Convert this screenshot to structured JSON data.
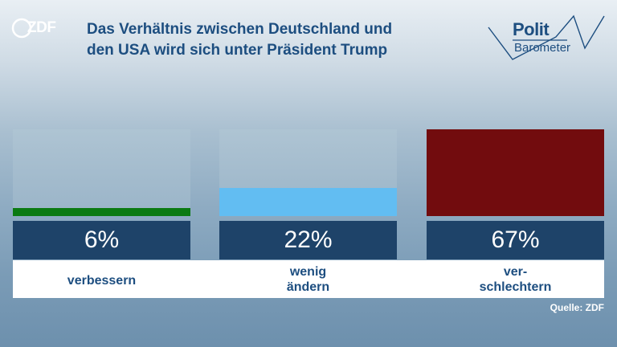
{
  "header": {
    "title_lines": [
      "Das Verhältnis zwischen Deutschland und",
      "den USA wird sich unter Präsident Trump"
    ],
    "logo_left": "ZDF",
    "logo_right_line1": "Polit",
    "logo_right_line2": "Barometer"
  },
  "chart_data": {
    "type": "bar",
    "title": "Das Verhältnis zwischen Deutschland und den USA wird sich unter Präsident Trump",
    "categories": [
      "verbessern",
      "wenig ändern",
      "verschlechtern"
    ],
    "category_lines": [
      [
        "verbessern"
      ],
      [
        "wenig",
        "ändern"
      ],
      [
        "ver-",
        "schlechtern"
      ]
    ],
    "values": [
      6,
      22,
      67
    ],
    "value_labels": [
      "6%",
      "22%",
      "67%"
    ],
    "colors": [
      "#0b7a12",
      "#62bdf2",
      "#720c0e"
    ],
    "ylim": [
      0,
      67
    ],
    "unit": "%"
  },
  "footer": {
    "source": "Quelle: ZDF"
  }
}
